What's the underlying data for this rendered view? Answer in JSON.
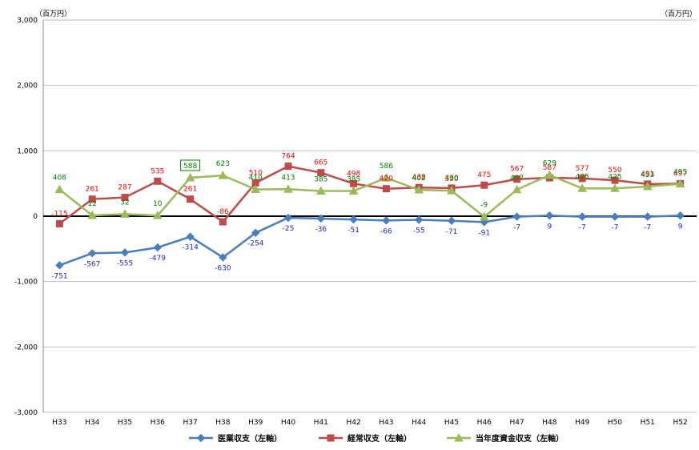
{
  "chart_data": {
    "type": "line",
    "unit_left": "（百万円）",
    "unit_right": "（百万円）",
    "ylim": [
      -3000,
      3000
    ],
    "yticks": [
      "3,000",
      "2,000",
      "1,000",
      "0",
      "-1,000",
      "-2,000",
      "-3,000"
    ],
    "ytick_values": [
      3000,
      2000,
      1000,
      0,
      -1000,
      -2000,
      -3000
    ],
    "categories": [
      "H33",
      "H34",
      "H35",
      "H36",
      "H37",
      "H38",
      "H39",
      "H40",
      "H41",
      "H42",
      "H43",
      "H44",
      "H45",
      "H46",
      "H47",
      "H48",
      "H49",
      "H50",
      "H51",
      "H52"
    ],
    "legend_position": "bottom",
    "series": [
      {
        "name": "医業収支（左軸）",
        "color": "#4a7ebb",
        "label_color": "#1f1fd0",
        "marker": "diamond",
        "values": [
          -751,
          -567,
          -555,
          -479,
          -314,
          -630,
          -254,
          -25,
          -36,
          -51,
          -66,
          -55,
          -71,
          -91,
          -7,
          9,
          -7,
          -7,
          -7,
          9
        ],
        "labels": [
          "-751",
          "-567",
          "-555",
          "-479",
          "-314",
          "-630",
          "-254",
          "-25",
          "-36",
          "-51",
          "-66",
          "-55",
          "-71",
          "-91",
          "-7",
          "9",
          "-7",
          "-7",
          "-7",
          "9"
        ]
      },
      {
        "name": "経常収支（左軸）",
        "color": "#be4b48",
        "label_color": "#ff0000",
        "marker": "square",
        "values": [
          -115,
          261,
          287,
          535,
          261,
          -86,
          510,
          764,
          665,
          498,
          420,
          438,
          430,
          475,
          567,
          587,
          577,
          550,
          491,
          497
        ],
        "labels": [
          "-115",
          "261",
          "287",
          "535",
          "261",
          "-86",
          "510",
          "764",
          "665",
          "498",
          "420",
          "438",
          "430",
          "475",
          "567",
          "587",
          "577",
          "550",
          "491",
          "497"
        ]
      },
      {
        "name": "当年度資金収支（左軸）",
        "color": "#9bbb59",
        "label_color": "#008000",
        "marker": "triangle",
        "values": [
          408,
          12,
          32,
          10,
          588,
          623,
          410,
          413,
          385,
          385,
          586,
          402,
          390,
          -9,
          407,
          629,
          425,
          425,
          453,
          495
        ],
        "labels": [
          "408",
          "12",
          "32",
          "10",
          "588",
          "623",
          "410",
          "413",
          "385",
          "385",
          "586",
          "402",
          "390",
          "-9",
          "407",
          "629",
          "425",
          "425",
          "453",
          "495"
        ]
      }
    ]
  }
}
